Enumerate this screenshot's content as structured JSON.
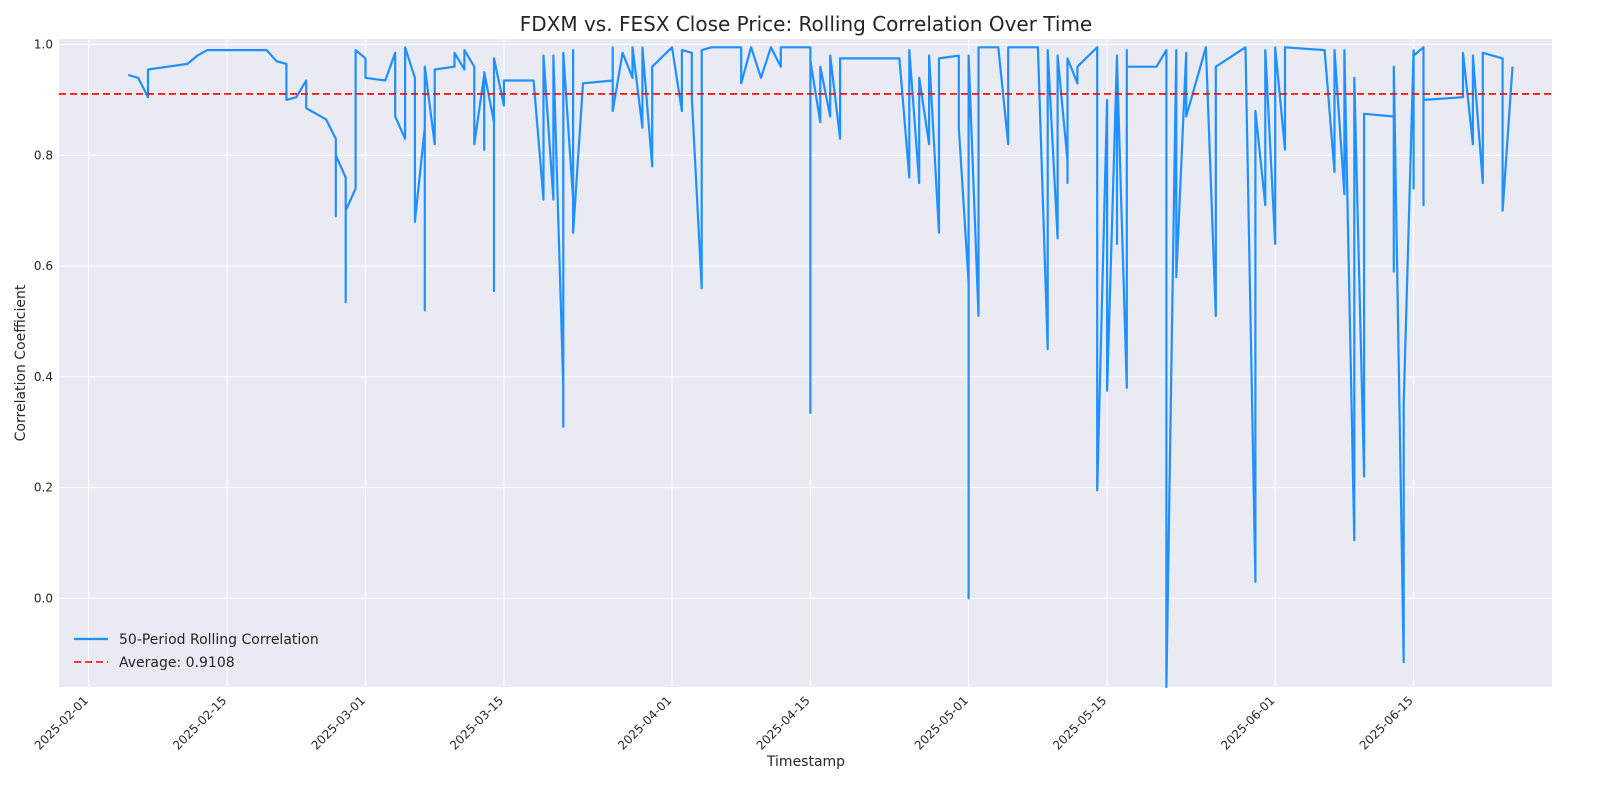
{
  "chart_data": {
    "type": "line",
    "title": "FDXM vs. FESX Close Price: Rolling Correlation Over Time",
    "xlabel": "Timestamp",
    "ylabel": "Correlation Coefficient",
    "xlim": [
      "2025-01-29",
      "2025-06-29"
    ],
    "ylim": [
      -0.16,
      1.01
    ],
    "x_ticks": [
      "2025-02-01",
      "2025-02-15",
      "2025-03-01",
      "2025-03-15",
      "2025-04-01",
      "2025-04-15",
      "2025-05-01",
      "2025-05-15",
      "2025-06-01",
      "2025-06-15"
    ],
    "y_ticks": [
      0.0,
      0.2,
      0.4,
      0.6,
      0.8,
      1.0
    ],
    "y_tick_labels": [
      "0.0",
      "0.2",
      "0.4",
      "0.6",
      "0.8",
      "1.0"
    ],
    "grid": true,
    "legend_position": "lower-left",
    "colors": {
      "series": "#1e90ff",
      "average": "#ff0000",
      "plot_bg": "#eaeaf2",
      "grid": "#ffffff"
    },
    "average_line": {
      "label": "Average: 0.9108",
      "value": 0.9108
    },
    "series": [
      {
        "name": "50-Period Rolling Correlation",
        "points": [
          [
            "2025-02-05",
            0.945
          ],
          [
            "2025-02-06",
            0.94
          ],
          [
            "2025-02-07",
            0.905
          ],
          [
            "2025-02-07",
            0.955
          ],
          [
            "2025-02-09",
            0.96
          ],
          [
            "2025-02-11",
            0.965
          ],
          [
            "2025-02-12",
            0.98
          ],
          [
            "2025-02-13",
            0.99
          ],
          [
            "2025-02-15",
            0.99
          ],
          [
            "2025-02-19",
            0.99
          ],
          [
            "2025-02-20",
            0.97
          ],
          [
            "2025-02-21",
            0.965
          ],
          [
            "2025-02-21",
            0.9
          ],
          [
            "2025-02-22",
            0.905
          ],
          [
            "2025-02-23",
            0.935
          ],
          [
            "2025-02-23",
            0.885
          ],
          [
            "2025-02-25",
            0.865
          ],
          [
            "2025-02-26",
            0.83
          ],
          [
            "2025-02-26",
            0.69
          ],
          [
            "2025-02-26",
            0.8
          ],
          [
            "2025-02-27",
            0.76
          ],
          [
            "2025-02-27",
            0.56
          ],
          [
            "2025-02-27",
            0.535
          ],
          [
            "2025-02-27",
            0.7
          ],
          [
            "2025-02-28",
            0.74
          ],
          [
            "2025-02-28",
            0.95
          ],
          [
            "2025-02-28",
            0.99
          ],
          [
            "2025-03-01",
            0.975
          ],
          [
            "2025-03-01",
            0.94
          ],
          [
            "2025-03-03",
            0.935
          ],
          [
            "2025-03-04",
            0.985
          ],
          [
            "2025-03-04",
            0.87
          ],
          [
            "2025-03-05",
            0.83
          ],
          [
            "2025-03-05",
            0.995
          ],
          [
            "2025-03-06",
            0.94
          ],
          [
            "2025-03-06",
            0.68
          ],
          [
            "2025-03-07",
            0.85
          ],
          [
            "2025-03-07",
            0.52
          ],
          [
            "2025-03-07",
            0.96
          ],
          [
            "2025-03-08",
            0.82
          ],
          [
            "2025-03-08",
            0.955
          ],
          [
            "2025-03-10",
            0.96
          ],
          [
            "2025-03-10",
            0.985
          ],
          [
            "2025-03-11",
            0.955
          ],
          [
            "2025-03-11",
            0.99
          ],
          [
            "2025-03-12",
            0.96
          ],
          [
            "2025-03-12",
            0.82
          ],
          [
            "2025-03-13",
            0.945
          ],
          [
            "2025-03-13",
            0.81
          ],
          [
            "2025-03-13",
            0.95
          ],
          [
            "2025-03-14",
            0.86
          ],
          [
            "2025-03-14",
            0.555
          ],
          [
            "2025-03-14",
            0.975
          ],
          [
            "2025-03-15",
            0.89
          ],
          [
            "2025-03-15",
            0.935
          ],
          [
            "2025-03-18",
            0.935
          ],
          [
            "2025-03-19",
            0.72
          ],
          [
            "2025-03-19",
            0.98
          ],
          [
            "2025-03-20",
            0.72
          ],
          [
            "2025-03-20",
            0.98
          ],
          [
            "2025-03-21",
            0.38
          ],
          [
            "2025-03-21",
            0.31
          ],
          [
            "2025-03-21",
            0.985
          ],
          [
            "2025-03-22",
            0.72
          ],
          [
            "2025-03-22",
            0.99
          ],
          [
            "2025-03-22",
            0.66
          ],
          [
            "2025-03-23",
            0.93
          ],
          [
            "2025-03-26",
            0.935
          ],
          [
            "2025-03-26",
            0.995
          ],
          [
            "2025-03-26",
            0.88
          ],
          [
            "2025-03-27",
            0.985
          ],
          [
            "2025-03-28",
            0.94
          ],
          [
            "2025-03-28",
            0.995
          ],
          [
            "2025-03-29",
            0.85
          ],
          [
            "2025-03-29",
            0.995
          ],
          [
            "2025-03-30",
            0.78
          ],
          [
            "2025-03-30",
            0.96
          ],
          [
            "2025-04-01",
            0.995
          ],
          [
            "2025-04-02",
            0.88
          ],
          [
            "2025-04-02",
            0.99
          ],
          [
            "2025-04-03",
            0.985
          ],
          [
            "2025-04-03",
            0.905
          ],
          [
            "2025-04-04",
            0.56
          ],
          [
            "2025-04-04",
            0.99
          ],
          [
            "2025-04-05",
            0.995
          ],
          [
            "2025-04-08",
            0.995
          ],
          [
            "2025-04-08",
            0.93
          ],
          [
            "2025-04-09",
            0.995
          ],
          [
            "2025-04-10",
            0.94
          ],
          [
            "2025-04-11",
            0.995
          ],
          [
            "2025-04-12",
            0.96
          ],
          [
            "2025-04-12",
            0.995
          ],
          [
            "2025-04-15",
            0.995
          ],
          [
            "2025-04-15",
            0.335
          ],
          [
            "2025-04-15",
            0.97
          ],
          [
            "2025-04-16",
            0.86
          ],
          [
            "2025-04-16",
            0.96
          ],
          [
            "2025-04-17",
            0.87
          ],
          [
            "2025-04-17",
            0.98
          ],
          [
            "2025-04-18",
            0.83
          ],
          [
            "2025-04-18",
            0.975
          ],
          [
            "2025-04-24",
            0.975
          ],
          [
            "2025-04-25",
            0.76
          ],
          [
            "2025-04-25",
            0.99
          ],
          [
            "2025-04-26",
            0.75
          ],
          [
            "2025-04-26",
            0.94
          ],
          [
            "2025-04-27",
            0.82
          ],
          [
            "2025-04-27",
            0.98
          ],
          [
            "2025-04-28",
            0.66
          ],
          [
            "2025-04-28",
            0.975
          ],
          [
            "2025-04-30",
            0.98
          ],
          [
            "2025-04-30",
            0.85
          ],
          [
            "2025-05-01",
            0.57
          ],
          [
            "2025-05-01",
            0.0
          ],
          [
            "2025-05-01",
            0.98
          ],
          [
            "2025-05-02",
            0.51
          ],
          [
            "2025-05-02",
            0.995
          ],
          [
            "2025-05-04",
            0.995
          ],
          [
            "2025-05-05",
            0.82
          ],
          [
            "2025-05-05",
            0.995
          ],
          [
            "2025-05-08",
            0.995
          ],
          [
            "2025-05-09",
            0.45
          ],
          [
            "2025-05-09",
            0.99
          ],
          [
            "2025-05-10",
            0.65
          ],
          [
            "2025-05-10",
            0.98
          ],
          [
            "2025-05-11",
            0.79
          ],
          [
            "2025-05-11",
            0.75
          ],
          [
            "2025-05-11",
            0.975
          ],
          [
            "2025-05-12",
            0.93
          ],
          [
            "2025-05-12",
            0.96
          ],
          [
            "2025-05-14",
            0.995
          ],
          [
            "2025-05-14",
            0.195
          ],
          [
            "2025-05-15",
            0.9
          ],
          [
            "2025-05-15",
            0.375
          ],
          [
            "2025-05-16",
            0.98
          ],
          [
            "2025-05-16",
            0.64
          ],
          [
            "2025-05-16",
            0.97
          ],
          [
            "2025-05-17",
            0.38
          ],
          [
            "2025-05-17",
            0.99
          ],
          [
            "2025-05-17",
            0.96
          ],
          [
            "2025-05-20",
            0.96
          ],
          [
            "2025-05-21",
            0.99
          ],
          [
            "2025-05-21",
            -0.16
          ],
          [
            "2025-05-22",
            0.99
          ],
          [
            "2025-05-22",
            0.58
          ],
          [
            "2025-05-23",
            0.985
          ],
          [
            "2025-05-23",
            0.87
          ],
          [
            "2025-05-25",
            0.995
          ],
          [
            "2025-05-26",
            0.51
          ],
          [
            "2025-05-26",
            0.96
          ],
          [
            "2025-05-29",
            0.995
          ],
          [
            "2025-05-30",
            0.03
          ],
          [
            "2025-05-30",
            0.88
          ],
          [
            "2025-05-31",
            0.71
          ],
          [
            "2025-05-31",
            0.99
          ],
          [
            "2025-06-01",
            0.64
          ],
          [
            "2025-06-01",
            0.995
          ],
          [
            "2025-06-02",
            0.81
          ],
          [
            "2025-06-02",
            0.995
          ],
          [
            "2025-06-06",
            0.99
          ],
          [
            "2025-06-07",
            0.77
          ],
          [
            "2025-06-07",
            0.99
          ],
          [
            "2025-06-08",
            0.73
          ],
          [
            "2025-06-08",
            0.99
          ],
          [
            "2025-06-09",
            0.105
          ],
          [
            "2025-06-09",
            0.94
          ],
          [
            "2025-06-10",
            0.22
          ],
          [
            "2025-06-10",
            0.875
          ],
          [
            "2025-06-13",
            0.87
          ],
          [
            "2025-06-13",
            0.59
          ],
          [
            "2025-06-13",
            0.96
          ],
          [
            "2025-06-14",
            -0.115
          ],
          [
            "2025-06-14",
            0.35
          ],
          [
            "2025-06-15",
            0.99
          ],
          [
            "2025-06-15",
            0.74
          ],
          [
            "2025-06-15",
            0.98
          ],
          [
            "2025-06-16",
            0.995
          ],
          [
            "2025-06-16",
            0.71
          ],
          [
            "2025-06-16",
            0.9
          ],
          [
            "2025-06-20",
            0.905
          ],
          [
            "2025-06-20",
            0.985
          ],
          [
            "2025-06-21",
            0.82
          ],
          [
            "2025-06-21",
            0.98
          ],
          [
            "2025-06-22",
            0.75
          ],
          [
            "2025-06-22",
            0.985
          ],
          [
            "2025-06-24",
            0.975
          ],
          [
            "2025-06-24",
            0.7
          ],
          [
            "2025-06-25",
            0.96
          ]
        ]
      }
    ]
  }
}
